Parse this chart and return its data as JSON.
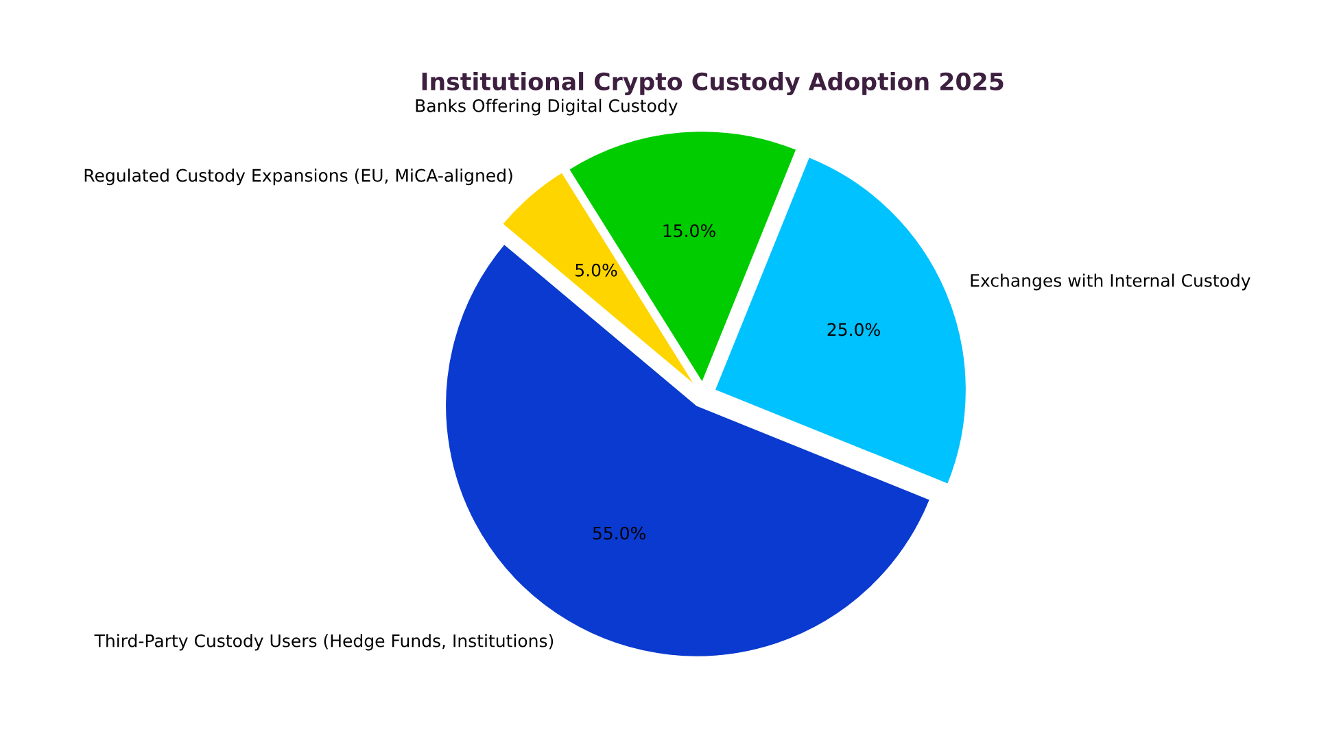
{
  "chart_data": {
    "type": "pie",
    "title": "Institutional Crypto Custody Adoption 2025",
    "categories": [
      "Third-Party Custody Users (Hedge Funds, Institutions)",
      "Exchanges with Internal Custody",
      "Banks Offering Digital Custody",
      "Regulated Custody Expansions (EU, MiCA-aligned)"
    ],
    "values": [
      55,
      25,
      15,
      5
    ],
    "colors": [
      "#0a3acf",
      "#00c2ff",
      "#00cc00",
      "#ffd500"
    ],
    "value_labels": [
      "55.0%",
      "25.0%",
      "15.0%",
      "5.0%"
    ]
  }
}
